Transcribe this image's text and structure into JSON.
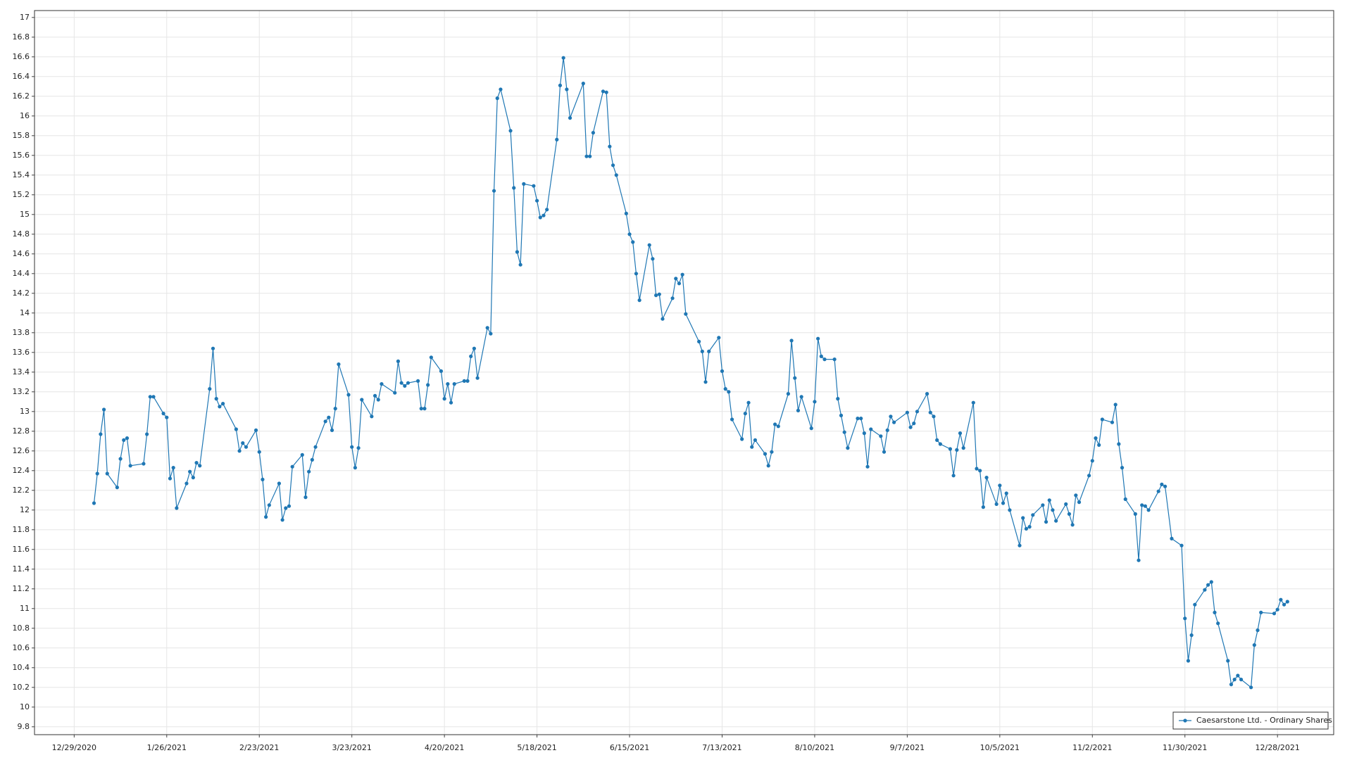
{
  "chart_data": {
    "type": "line",
    "x": [
      "1/4/2021",
      "1/5/2021",
      "1/6/2021",
      "1/7/2021",
      "1/8/2021",
      "1/11/2021",
      "1/12/2021",
      "1/13/2021",
      "1/14/2021",
      "1/15/2021",
      "1/19/2021",
      "1/20/2021",
      "1/21/2021",
      "1/22/2021",
      "1/25/2021",
      "1/26/2021",
      "1/27/2021",
      "1/28/2021",
      "1/29/2021",
      "2/1/2021",
      "2/2/2021",
      "2/3/2021",
      "2/4/2021",
      "2/5/2021",
      "2/8/2021",
      "2/9/2021",
      "2/10/2021",
      "2/11/2021",
      "2/12/2021",
      "2/16/2021",
      "2/17/2021",
      "2/18/2021",
      "2/19/2021",
      "2/22/2021",
      "2/23/2021",
      "2/24/2021",
      "2/25/2021",
      "2/26/2021",
      "3/1/2021",
      "3/2/2021",
      "3/3/2021",
      "3/4/2021",
      "3/5/2021",
      "3/8/2021",
      "3/9/2021",
      "3/10/2021",
      "3/11/2021",
      "3/12/2021",
      "3/15/2021",
      "3/16/2021",
      "3/17/2021",
      "3/18/2021",
      "3/19/2021",
      "3/22/2021",
      "3/23/2021",
      "3/24/2021",
      "3/25/2021",
      "3/26/2021",
      "3/29/2021",
      "3/30/2021",
      "3/31/2021",
      "4/1/2021",
      "4/5/2021",
      "4/6/2021",
      "4/7/2021",
      "4/8/2021",
      "4/9/2021",
      "4/12/2021",
      "4/13/2021",
      "4/14/2021",
      "4/15/2021",
      "4/16/2021",
      "4/19/2021",
      "4/20/2021",
      "4/21/2021",
      "4/22/2021",
      "4/23/2021",
      "4/26/2021",
      "4/27/2021",
      "4/28/2021",
      "4/29/2021",
      "4/30/2021",
      "5/3/2021",
      "5/4/2021",
      "5/5/2021",
      "5/6/2021",
      "5/7/2021",
      "5/10/2021",
      "5/11/2021",
      "5/12/2021",
      "5/13/2021",
      "5/14/2021",
      "5/17/2021",
      "5/18/2021",
      "5/19/2021",
      "5/20/2021",
      "5/21/2021",
      "5/24/2021",
      "5/25/2021",
      "5/26/2021",
      "5/27/2021",
      "5/28/2021",
      "6/1/2021",
      "6/2/2021",
      "6/3/2021",
      "6/4/2021",
      "6/7/2021",
      "6/8/2021",
      "6/9/2021",
      "6/10/2021",
      "6/11/2021",
      "6/14/2021",
      "6/15/2021",
      "6/16/2021",
      "6/17/2021",
      "6/18/2021",
      "6/21/2021",
      "6/22/2021",
      "6/23/2021",
      "6/24/2021",
      "6/25/2021",
      "6/28/2021",
      "6/29/2021",
      "6/30/2021",
      "7/1/2021",
      "7/2/2021",
      "7/6/2021",
      "7/7/2021",
      "7/8/2021",
      "7/9/2021",
      "7/12/2021",
      "7/13/2021",
      "7/14/2021",
      "7/15/2021",
      "7/16/2021",
      "7/19/2021",
      "7/20/2021",
      "7/21/2021",
      "7/22/2021",
      "7/23/2021",
      "7/26/2021",
      "7/27/2021",
      "7/28/2021",
      "7/29/2021",
      "7/30/2021",
      "8/2/2021",
      "8/3/2021",
      "8/4/2021",
      "8/5/2021",
      "8/6/2021",
      "8/9/2021",
      "8/10/2021",
      "8/11/2021",
      "8/12/2021",
      "8/13/2021",
      "8/16/2021",
      "8/17/2021",
      "8/18/2021",
      "8/19/2021",
      "8/20/2021",
      "8/23/2021",
      "8/24/2021",
      "8/25/2021",
      "8/26/2021",
      "8/27/2021",
      "8/30/2021",
      "8/31/2021",
      "9/1/2021",
      "9/2/2021",
      "9/3/2021",
      "9/7/2021",
      "9/8/2021",
      "9/9/2021",
      "9/10/2021",
      "9/13/2021",
      "9/14/2021",
      "9/15/2021",
      "9/16/2021",
      "9/17/2021",
      "9/20/2021",
      "9/21/2021",
      "9/22/2021",
      "9/23/2021",
      "9/24/2021",
      "9/27/2021",
      "9/28/2021",
      "9/29/2021",
      "9/30/2021",
      "10/1/2021",
      "10/4/2021",
      "10/5/2021",
      "10/6/2021",
      "10/7/2021",
      "10/8/2021",
      "10/11/2021",
      "10/12/2021",
      "10/13/2021",
      "10/14/2021",
      "10/15/2021",
      "10/18/2021",
      "10/19/2021",
      "10/20/2021",
      "10/21/2021",
      "10/22/2021",
      "10/25/2021",
      "10/26/2021",
      "10/27/2021",
      "10/28/2021",
      "10/29/2021",
      "11/1/2021",
      "11/2/2021",
      "11/3/2021",
      "11/4/2021",
      "11/5/2021",
      "11/8/2021",
      "11/9/2021",
      "11/10/2021",
      "11/11/2021",
      "11/12/2021",
      "11/15/2021",
      "11/16/2021",
      "11/17/2021",
      "11/18/2021",
      "11/19/2021",
      "11/22/2021",
      "11/23/2021",
      "11/24/2021",
      "11/26/2021",
      "11/29/2021",
      "11/30/2021",
      "12/1/2021",
      "12/2/2021",
      "12/3/2021",
      "12/6/2021",
      "12/7/2021",
      "12/8/2021",
      "12/9/2021",
      "12/10/2021",
      "12/13/2021",
      "12/14/2021",
      "12/15/2021",
      "12/16/2021",
      "12/17/2021",
      "12/20/2021",
      "12/21/2021",
      "12/22/2021",
      "12/23/2021",
      "12/27/2021",
      "12/28/2021",
      "12/29/2021",
      "12/30/2021",
      "12/31/2021"
    ],
    "series": [
      {
        "name": "Caesarstone Ltd. - Ordinary Shares",
        "color": "#1f77b4",
        "values": [
          12.07,
          12.37,
          12.77,
          13.02,
          12.37,
          12.23,
          12.52,
          12.71,
          12.73,
          12.45,
          12.47,
          12.77,
          13.15,
          13.15,
          12.98,
          12.94,
          12.32,
          12.43,
          12.02,
          12.27,
          12.39,
          12.33,
          12.48,
          12.45,
          13.23,
          13.64,
          13.13,
          13.05,
          13.08,
          12.82,
          12.6,
          12.68,
          12.64,
          12.81,
          12.59,
          12.31,
          11.93,
          12.05,
          12.27,
          11.9,
          12.02,
          12.04,
          12.44,
          12.56,
          12.13,
          12.39,
          12.51,
          12.64,
          12.9,
          12.94,
          12.81,
          13.03,
          13.48,
          13.17,
          12.64,
          12.43,
          12.63,
          13.12,
          12.95,
          13.16,
          13.12,
          13.28,
          13.19,
          13.51,
          13.29,
          13.26,
          13.29,
          13.31,
          13.03,
          13.03,
          13.27,
          13.55,
          13.41,
          13.13,
          13.28,
          13.09,
          13.28,
          13.31,
          13.31,
          13.56,
          13.64,
          13.34,
          13.85,
          13.79,
          15.24,
          16.18,
          16.27,
          15.85,
          15.27,
          14.62,
          14.49,
          15.31,
          15.29,
          15.14,
          14.97,
          14.99,
          15.05,
          15.76,
          16.31,
          16.59,
          16.27,
          15.98,
          16.33,
          15.59,
          15.59,
          15.83,
          16.25,
          16.24,
          15.69,
          15.5,
          15.4,
          15.01,
          14.8,
          14.72,
          14.4,
          14.13,
          14.69,
          14.55,
          14.18,
          14.19,
          13.94,
          14.15,
          14.35,
          14.3,
          14.39,
          13.99,
          13.71,
          13.61,
          13.3,
          13.61,
          13.75,
          13.41,
          13.23,
          13.2,
          12.92,
          12.72,
          12.98,
          13.09,
          12.64,
          12.71,
          12.57,
          12.45,
          12.59,
          12.87,
          12.85,
          13.18,
          13.72,
          13.34,
          13.01,
          13.15,
          12.83,
          13.1,
          13.74,
          13.56,
          13.53,
          13.53,
          13.13,
          12.96,
          12.79,
          12.63,
          12.93,
          12.93,
          12.78,
          12.44,
          12.82,
          12.75,
          12.59,
          12.81,
          12.95,
          12.89,
          12.99,
          12.84,
          12.88,
          13.0,
          13.18,
          12.99,
          12.95,
          12.71,
          12.67,
          12.62,
          12.35,
          12.61,
          12.78,
          12.63,
          13.09,
          12.42,
          12.4,
          12.03,
          12.33,
          12.06,
          12.25,
          12.07,
          12.17,
          12.0,
          11.64,
          11.92,
          11.81,
          11.83,
          11.95,
          12.05,
          11.88,
          12.1,
          12.0,
          11.89,
          12.06,
          11.96,
          11.85,
          12.15,
          12.08,
          12.35,
          12.5,
          12.73,
          12.66,
          12.92,
          12.89,
          13.07,
          12.67,
          12.43,
          12.11,
          11.96,
          11.49,
          12.05,
          12.04,
          12.0,
          12.19,
          12.26,
          12.24,
          11.71,
          11.64,
          10.9,
          10.47,
          10.73,
          11.04,
          11.19,
          11.24,
          11.27,
          10.96,
          10.85,
          10.47,
          10.23,
          10.28,
          10.32,
          10.28,
          10.2,
          10.63,
          10.78,
          10.96,
          10.95,
          10.99,
          11.09,
          11.04,
          11.07
        ]
      }
    ],
    "xlim": [
      "12/17/2020",
      "1/14/2022"
    ],
    "xticks": [
      "12/29/2020",
      "1/26/2021",
      "2/23/2021",
      "3/23/2021",
      "4/20/2021",
      "5/18/2021",
      "6/15/2021",
      "7/13/2021",
      "8/10/2021",
      "9/7/2021",
      "10/5/2021",
      "11/2/2021",
      "11/30/2021",
      "12/28/2021"
    ],
    "ylim": [
      9.72,
      17.07
    ],
    "yticks": [
      9.8,
      10,
      10.2,
      10.4,
      10.6,
      10.8,
      11,
      11.2,
      11.4,
      11.6,
      11.8,
      12,
      12.2,
      12.4,
      12.6,
      12.8,
      13,
      13.2,
      13.4,
      13.6,
      13.8,
      14,
      14.2,
      14.4,
      14.6,
      14.8,
      15,
      15.2,
      15.4,
      15.6,
      15.8,
      16,
      16.2,
      16.4,
      16.6,
      16.8,
      17
    ],
    "grid": true,
    "legend": "bottom-right"
  }
}
